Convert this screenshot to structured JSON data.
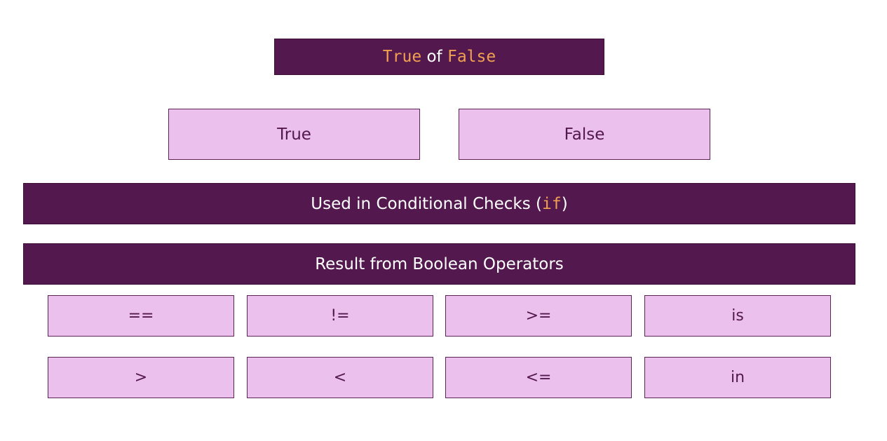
{
  "title": {
    "true_word": "True",
    "joiner": " of ",
    "false_word": "False"
  },
  "values": {
    "true_label": "True",
    "false_label": "False"
  },
  "conditional": {
    "prefix": "Used in Conditional Checks (",
    "keyword": "if",
    "suffix": ")"
  },
  "operators_header": "Result from Boolean Operators",
  "operators": {
    "row1": [
      "==",
      "!=",
      ">=",
      "is"
    ],
    "row2": [
      ">",
      "<",
      "<=",
      "in"
    ]
  },
  "colors": {
    "dark_purple": "#53184e",
    "light_purple": "#ecc0ec",
    "code_orange": "#f0a050"
  }
}
